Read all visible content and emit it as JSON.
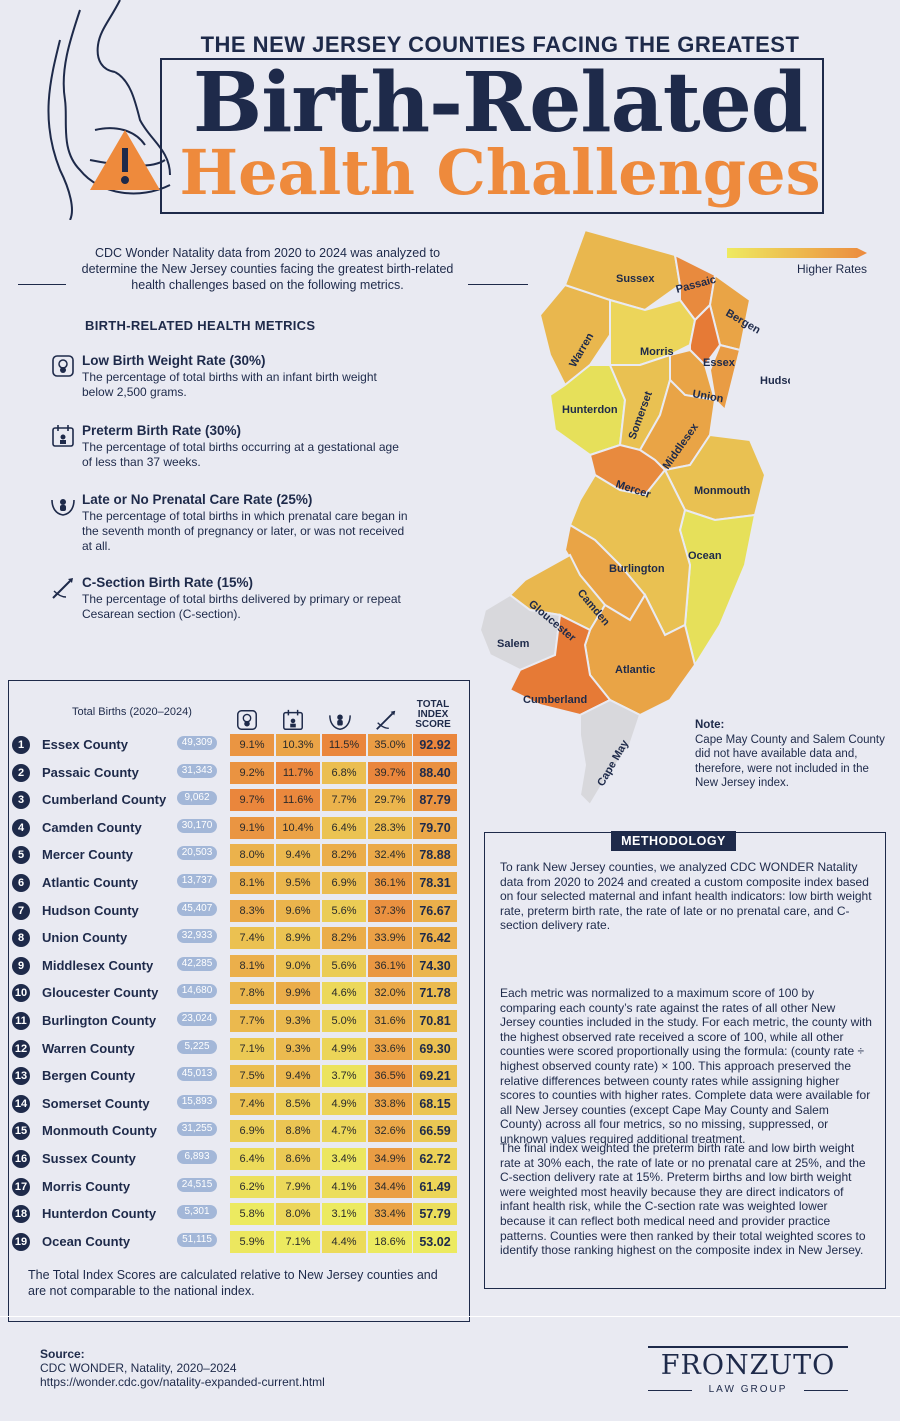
{
  "header": {
    "headline": "THE NEW JERSEY COUNTIES FACING THE GREATEST",
    "title_line1": "Birth-Related",
    "title_line2": "Health Challenges"
  },
  "intro": "CDC Wonder Natality data from 2020 to 2024 was analyzed to determine the New Jersey counties facing the greatest birth-related health challenges based on the following metrics.",
  "metrics_heading": "BIRTH-RELATED HEALTH METRICS",
  "metrics": [
    {
      "title": "Low Birth Weight Rate (30%)",
      "desc": "The percentage of total births with an infant birth weight below 2,500 grams.",
      "icon": "scale-baby-icon"
    },
    {
      "title": "Preterm Birth Rate (30%)",
      "desc": "The percentage of total births occurring at a gestational age of less than 37 weeks.",
      "icon": "calendar-baby-icon"
    },
    {
      "title": "Late or No Prenatal Care Rate (25%)",
      "desc": "The percentage of total births in which prenatal care began in the seventh month of pregnancy or later, or was not received at all.",
      "icon": "hands-baby-icon"
    },
    {
      "title": "C-Section Birth Rate  (15%)",
      "desc": "The percentage of total births delivered by primary or repeat Cesarean section (C-section).",
      "icon": "scalpel-icon"
    }
  ],
  "map": {
    "legend_label": "Higher Rates",
    "labels": [
      "Sussex",
      "Passaic",
      "Bergen",
      "Warren",
      "Morris",
      "Essex",
      "Hudson",
      "Union",
      "Hunterdon",
      "Somerset",
      "Middlesex",
      "Mercer",
      "Monmouth",
      "Ocean",
      "Burlington",
      "Camden",
      "Gloucester",
      "Salem",
      "Atlantic",
      "Cumberland",
      "Cape May"
    ],
    "note_title": "Note:",
    "note_text": "Cape May County and Salem County did not have available data and, therefore, were not included in the New Jersey index."
  },
  "table": {
    "births_header": "Total Births (2020–2024)",
    "score_header_1": "TOTAL",
    "score_header_2": "INDEX",
    "score_header_3": "SCORE",
    "rows": [
      {
        "rank": "1",
        "county": "Essex County",
        "births": "49,309",
        "lbw": "9.1%",
        "pre": "10.3%",
        "care": "11.5%",
        "cs": "35.0%",
        "score": "92.92"
      },
      {
        "rank": "2",
        "county": "Passaic County",
        "births": "31,343",
        "lbw": "9.2%",
        "pre": "11.7%",
        "care": "6.8%",
        "cs": "39.7%",
        "score": "88.40"
      },
      {
        "rank": "3",
        "county": "Cumberland County",
        "births": "9,062",
        "lbw": "9.7%",
        "pre": "11.6%",
        "care": "7.7%",
        "cs": "29.7%",
        "score": "87.79"
      },
      {
        "rank": "4",
        "county": "Camden County",
        "births": "30,170",
        "lbw": "9.1%",
        "pre": "10.4%",
        "care": "6.4%",
        "cs": "28.3%",
        "score": "79.70"
      },
      {
        "rank": "5",
        "county": "Mercer County",
        "births": "20,503",
        "lbw": "8.0%",
        "pre": "9.4%",
        "care": "8.2%",
        "cs": "32.4%",
        "score": "78.88"
      },
      {
        "rank": "6",
        "county": "Atlantic County",
        "births": "13,737",
        "lbw": "8.1%",
        "pre": "9.5%",
        "care": "6.9%",
        "cs": "36.1%",
        "score": "78.31"
      },
      {
        "rank": "7",
        "county": "Hudson County",
        "births": "45,407",
        "lbw": "8.3%",
        "pre": "9.6%",
        "care": "5.6%",
        "cs": "37.3%",
        "score": "76.67"
      },
      {
        "rank": "8",
        "county": "Union County",
        "births": "32,933",
        "lbw": "7.4%",
        "pre": "8.9%",
        "care": "8.2%",
        "cs": "33.9%",
        "score": "76.42"
      },
      {
        "rank": "9",
        "county": "Middlesex County",
        "births": "42,285",
        "lbw": "8.1%",
        "pre": "9.0%",
        "care": "5.6%",
        "cs": "36.1%",
        "score": "74.30"
      },
      {
        "rank": "10",
        "county": "Gloucester County",
        "births": "14,680",
        "lbw": "7.8%",
        "pre": "9.9%",
        "care": "4.6%",
        "cs": "32.0%",
        "score": "71.78"
      },
      {
        "rank": "11",
        "county": "Burlington County",
        "births": "23,024",
        "lbw": "7.7%",
        "pre": "9.3%",
        "care": "5.0%",
        "cs": "31.6%",
        "score": "70.81"
      },
      {
        "rank": "12",
        "county": "Warren County",
        "births": "5,225",
        "lbw": "7.1%",
        "pre": "9.3%",
        "care": "4.9%",
        "cs": "33.6%",
        "score": "69.30"
      },
      {
        "rank": "13",
        "county": "Bergen County",
        "births": "45,013",
        "lbw": "7.5%",
        "pre": "9.4%",
        "care": "3.7%",
        "cs": "36.5%",
        "score": "69.21"
      },
      {
        "rank": "14",
        "county": "Somerset County",
        "births": "15,893",
        "lbw": "7.4%",
        "pre": "8.5%",
        "care": "4.9%",
        "cs": "33.8%",
        "score": "68.15"
      },
      {
        "rank": "15",
        "county": "Monmouth County",
        "births": "31,255",
        "lbw": "6.9%",
        "pre": "8.8%",
        "care": "4.7%",
        "cs": "32.6%",
        "score": "66.59"
      },
      {
        "rank": "16",
        "county": "Sussex County",
        "births": "6,893",
        "lbw": "6.4%",
        "pre": "8.6%",
        "care": "3.4%",
        "cs": "34.9%",
        "score": "62.72"
      },
      {
        "rank": "17",
        "county": "Morris County",
        "births": "24,515",
        "lbw": "6.2%",
        "pre": "7.9%",
        "care": "4.1%",
        "cs": "34.4%",
        "score": "61.49"
      },
      {
        "rank": "18",
        "county": "Hunterdon County",
        "births": "5,301",
        "lbw": "5.8%",
        "pre": "8.0%",
        "care": "3.1%",
        "cs": "33.4%",
        "score": "57.79"
      },
      {
        "rank": "19",
        "county": "Ocean County",
        "births": "51,115",
        "lbw": "5.9%",
        "pre": "7.1%",
        "care": "4.4%",
        "cs": "18.6%",
        "score": "53.02"
      }
    ],
    "footnote": "The Total Index Scores are calculated relative to New Jersey counties and are not comparable to the national index."
  },
  "methodology": {
    "title": "METHODOLOGY",
    "p1": "To rank New Jersey counties, we analyzed CDC WONDER Natality data from 2020 to 2024 and created a custom composite index based on four selected maternal and infant health indicators: low birth weight rate, preterm birth rate, the rate of late or no prenatal care, and C-section delivery rate.",
    "p2": "Each metric was normalized to a maximum score of 100 by comparing each county’s rate against the rates of all other New Jersey counties included in the study. For each metric, the county with the highest observed rate received a score of 100, while all other counties were scored proportionally using the formula: (county rate ÷ highest observed county rate) × 100. This approach preserved the relative differences between county rates while assigning higher scores to counties with higher rates. Complete data were available for all New Jersey counties (except Cape May County and Salem County) across all four metrics, so no missing, suppressed, or unknown values required additional treatment.",
    "p3": "The final index weighted the preterm birth rate and low birth weight rate at 30% each, the rate of late or no prenatal care at 25%, and the C-section delivery rate at 15%. Preterm births and low birth weight were weighted most heavily because they are direct indicators of infant health risk, while the C-section rate was weighted lower because it can reflect both medical need and provider practice patterns. Counties were then ranked by their total weighted scores to identify those ranking highest on the composite index in New Jersey."
  },
  "footer": {
    "source_label": "Source:",
    "source_name": "CDC WONDER, Natality, 2020–2024",
    "source_url": "https://wonder.cdc.gov/natality-expanded-current.html",
    "brand": "FRONZUTO",
    "brand_sub": "LAW GROUP"
  },
  "colors": {
    "navy": "#1e2a4a",
    "orange": "#ee8a3c",
    "yellow": "#e6e35a",
    "bg": "#e9eaf2"
  }
}
